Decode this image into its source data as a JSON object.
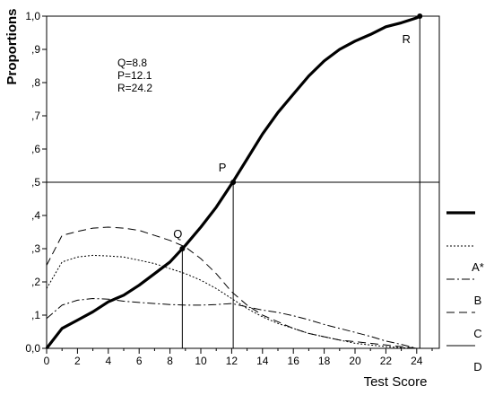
{
  "chart_data": {
    "type": "line",
    "xlabel": "Test Score",
    "ylabel": "Proportions",
    "xlim": [
      0,
      25
    ],
    "ylim": [
      0,
      1
    ],
    "x_ticks": [
      "0",
      "2",
      "4",
      "6",
      "8",
      "10",
      "12",
      "14",
      "16",
      "18",
      "20",
      "22",
      "24"
    ],
    "y_ticks": [
      "0,0",
      ",1",
      ",2",
      ",3",
      ",4",
      ",5",
      ",6",
      ",7",
      ",8",
      ",9",
      "1,0"
    ],
    "grid": false,
    "legend": "right",
    "annotation_text": [
      "Q=8.8",
      "P=12.1",
      "R=24.2"
    ],
    "reference_points": [
      {
        "label": "Q",
        "x": 8.8,
        "y": 0.3
      },
      {
        "label": "P",
        "x": 12.1,
        "y": 0.5
      },
      {
        "label": "R",
        "x": 24.2,
        "y": 1.0
      }
    ],
    "reference_line_y": 0.5,
    "series": [
      {
        "label": "",
        "style": "thick-solid",
        "x": [
          0,
          1,
          2,
          3,
          4,
          5,
          6,
          7,
          8,
          9,
          10,
          11,
          12,
          13,
          14,
          15,
          16,
          17,
          18,
          19,
          20,
          21,
          22,
          23,
          24,
          24.2
        ],
        "y": [
          0.0,
          0.06,
          0.085,
          0.11,
          0.14,
          0.16,
          0.19,
          0.225,
          0.26,
          0.31,
          0.365,
          0.425,
          0.495,
          0.57,
          0.645,
          0.71,
          0.765,
          0.82,
          0.865,
          0.9,
          0.925,
          0.945,
          0.968,
          0.98,
          0.995,
          1.0
        ]
      },
      {
        "label": "A*",
        "style": "dotted",
        "x": [
          0,
          1,
          2,
          3,
          4,
          5,
          6,
          7,
          8,
          9,
          10,
          11,
          12,
          13,
          14,
          15,
          16,
          17,
          18,
          19,
          20,
          21,
          22,
          23,
          24
        ],
        "y": [
          0.18,
          0.26,
          0.275,
          0.28,
          0.278,
          0.275,
          0.265,
          0.255,
          0.24,
          0.225,
          0.205,
          0.18,
          0.15,
          0.12,
          0.095,
          0.075,
          0.06,
          0.045,
          0.035,
          0.025,
          0.015,
          0.01,
          0.005,
          0.002,
          0.0
        ]
      },
      {
        "label": "B",
        "style": "dash-dot",
        "x": [
          0,
          1,
          2,
          3,
          4,
          5,
          6,
          7,
          8,
          9,
          10,
          11,
          12,
          13,
          14,
          15,
          16,
          17,
          18,
          19,
          20,
          21,
          22,
          23,
          24
        ],
        "y": [
          0.09,
          0.13,
          0.145,
          0.15,
          0.148,
          0.142,
          0.138,
          0.135,
          0.132,
          0.13,
          0.13,
          0.132,
          0.135,
          0.125,
          0.115,
          0.108,
          0.098,
          0.086,
          0.072,
          0.06,
          0.048,
          0.036,
          0.022,
          0.012,
          0.0
        ]
      },
      {
        "label": "C",
        "style": "long-dash",
        "x": [
          0,
          1,
          2,
          3,
          4,
          5,
          6,
          7,
          8,
          9,
          10,
          11,
          12,
          13,
          14,
          15,
          16,
          17,
          18,
          19,
          20,
          21,
          22,
          23,
          24
        ],
        "y": [
          0.25,
          0.34,
          0.352,
          0.362,
          0.365,
          0.362,
          0.355,
          0.34,
          0.325,
          0.305,
          0.27,
          0.225,
          0.17,
          0.13,
          0.1,
          0.08,
          0.06,
          0.045,
          0.035,
          0.025,
          0.02,
          0.015,
          0.01,
          0.005,
          0.0
        ]
      },
      {
        "label": "D",
        "style": "solid",
        "x": [],
        "y": []
      }
    ]
  }
}
